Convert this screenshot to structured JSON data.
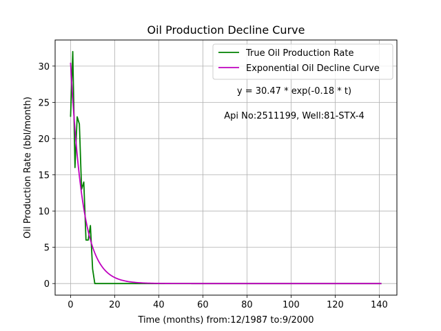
{
  "chart_data": {
    "type": "line",
    "title": "Oil Production Decline Curve",
    "xlabel": "Time (months) from:12/1987 to:9/2000",
    "ylabel": "Oil Production Rate (bbl/month)",
    "xlim": [
      -7,
      148
    ],
    "ylim": [
      -1.6,
      33.6
    ],
    "x_ticks": [
      0,
      20,
      40,
      60,
      80,
      100,
      120,
      140
    ],
    "y_ticks": [
      0,
      5,
      10,
      15,
      20,
      25,
      30
    ],
    "grid": true,
    "legend_position": "top-right",
    "annotations": [
      "y = 30.47 * exp(-0.18 * t)",
      "Api No:2511199, Well:81-STX-4"
    ],
    "series": [
      {
        "name": "True Oil Production Rate",
        "color": "#008000",
        "x": [
          0,
          1,
          2,
          3,
          4,
          5,
          6,
          7,
          8,
          9,
          10,
          11,
          20,
          40,
          60,
          80,
          100,
          120,
          141
        ],
        "y": [
          23,
          32,
          16,
          23,
          22,
          13,
          14,
          6,
          6,
          8,
          2,
          0,
          0,
          0,
          0,
          0,
          0,
          0,
          0
        ]
      },
      {
        "name": "Exponential Oil Decline Curve",
        "color": "#bf00bf",
        "model": {
          "a": 30.47,
          "b": -0.18,
          "x_start": 0,
          "x_end": 141
        }
      }
    ]
  }
}
